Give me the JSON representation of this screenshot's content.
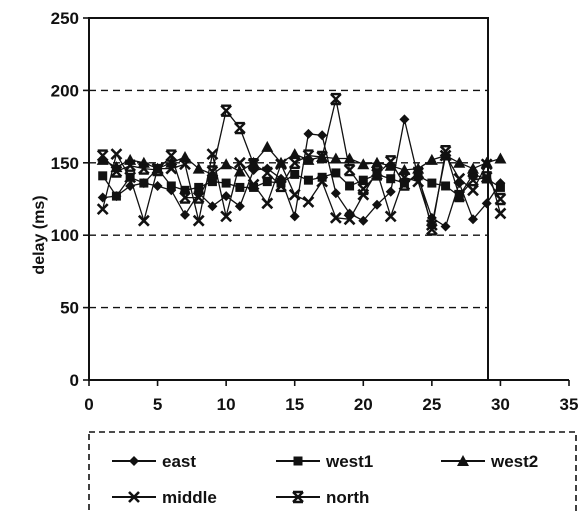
{
  "chart_data": {
    "type": "line",
    "title": "",
    "xlabel": "",
    "ylabel": "delay (ms)",
    "xlim": [
      0,
      35
    ],
    "ylim": [
      0,
      250
    ],
    "xticks": [
      0,
      5,
      10,
      15,
      20,
      25,
      30,
      35
    ],
    "yticks": [
      0,
      50,
      100,
      150,
      200,
      250
    ],
    "grid": "horizontal-dashed",
    "legend_position": "bottom",
    "x": [
      1,
      2,
      3,
      4,
      5,
      6,
      7,
      8,
      9,
      10,
      11,
      12,
      13,
      14,
      15,
      16,
      17,
      18,
      19,
      20,
      21,
      22,
      23,
      24,
      25,
      26,
      27,
      28,
      29,
      30
    ],
    "series": [
      {
        "name": "east",
        "marker": "diamond",
        "values": [
          126,
          127,
          134,
          136,
          134,
          131,
          114,
          129,
          120,
          127,
          120,
          145,
          146,
          139,
          113,
          170,
          169,
          129,
          115,
          110,
          121,
          130,
          180,
          140,
          112,
          106,
          136,
          111,
          122,
          136
        ]
      },
      {
        "name": "west1",
        "marker": "square",
        "values": [
          141,
          127,
          140,
          136,
          146,
          134,
          131,
          133,
          137,
          136,
          133,
          133,
          137,
          136,
          142,
          138,
          140,
          143,
          134,
          138,
          142,
          139,
          136,
          141,
          136,
          134,
          127,
          142,
          139,
          133
        ]
      },
      {
        "name": "west2",
        "marker": "triangle",
        "values": [
          152,
          147,
          152,
          150,
          146,
          150,
          154,
          146,
          142,
          149,
          144,
          150,
          161,
          150,
          156,
          152,
          154,
          153,
          153,
          149,
          150,
          148,
          145,
          146,
          152,
          155,
          150,
          146,
          150,
          153
        ]
      },
      {
        "name": "middle",
        "marker": "x",
        "values": [
          118,
          156,
          140,
          110,
          146,
          146,
          149,
          110,
          156,
          113,
          150,
          135,
          122,
          149,
          128,
          123,
          137,
          112,
          111,
          128,
          144,
          113,
          140,
          137,
          107,
          155,
          139,
          131,
          149,
          115
        ]
      },
      {
        "name": "north",
        "marker": "x-bar",
        "values": [
          155,
          144,
          148,
          146,
          145,
          155,
          126,
          126,
          144,
          186,
          174,
          149,
          143,
          134,
          150,
          155,
          154,
          194,
          145,
          132,
          142,
          151,
          135,
          143,
          104,
          158,
          127,
          138,
          140,
          125
        ]
      }
    ]
  }
}
